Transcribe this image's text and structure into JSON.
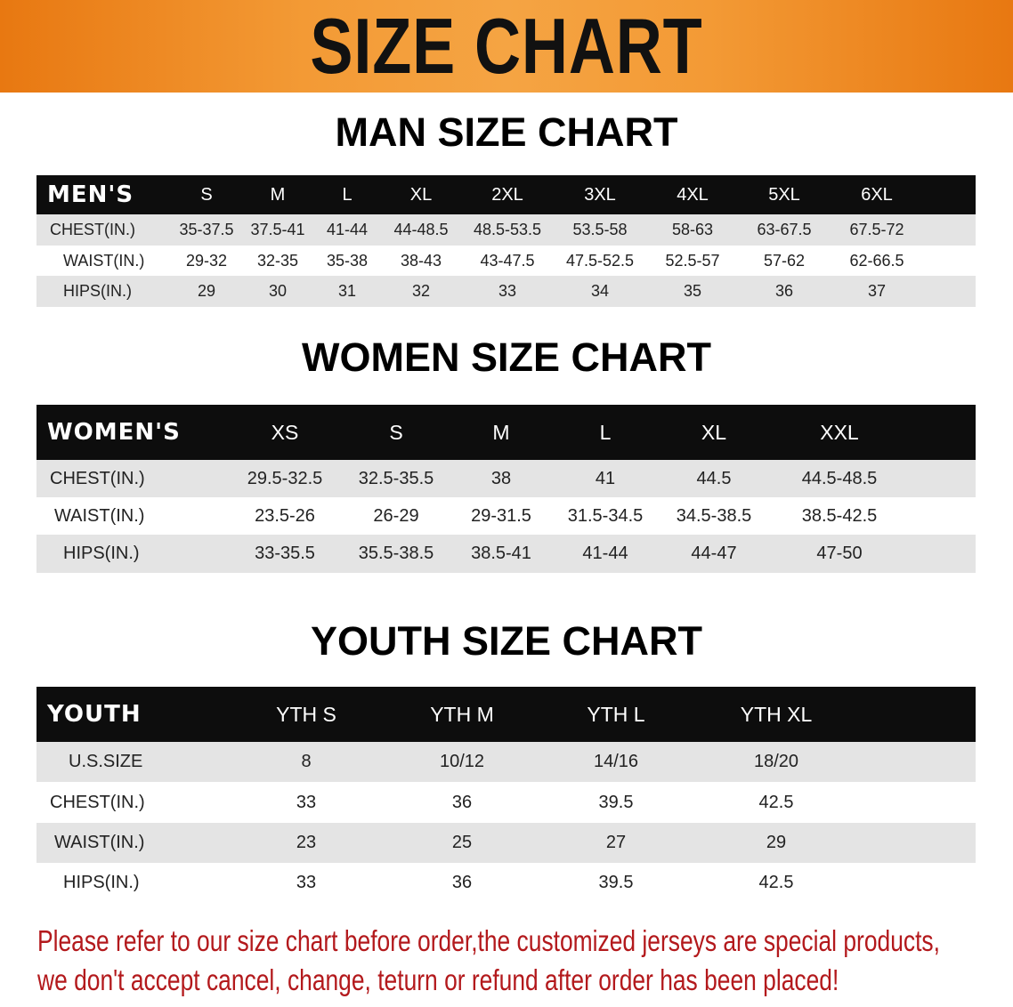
{
  "banner": {
    "title": "SIZE CHART",
    "color": "#f08a1e"
  },
  "men": {
    "title": "MAN SIZE CHART",
    "header": [
      "MEN'S",
      "S",
      "M",
      "L",
      "XL",
      "2XL",
      "3XL",
      "4XL",
      "5XL",
      "6XL"
    ],
    "rows": [
      [
        "CHEST(IN.)",
        "35-37.5",
        "37.5-41",
        "41-44",
        "44-48.5",
        "48.5-53.5",
        "53.5-58",
        "58-63",
        "63-67.5",
        "67.5-72"
      ],
      [
        "WAIST(IN.)",
        "29-32",
        "32-35",
        "35-38",
        "38-43",
        "43-47.5",
        "47.5-52.5",
        "52.5-57",
        "57-62",
        "62-66.5"
      ],
      [
        "HIPS(IN.)",
        "29",
        "30",
        "31",
        "32",
        "33",
        "34",
        "35",
        "36",
        "37"
      ]
    ]
  },
  "women": {
    "title": "WOMEN SIZE CHART",
    "header": [
      "WOMEN'S",
      "XS",
      "S",
      "M",
      "L",
      "XL",
      "XXL"
    ],
    "rows": [
      [
        "CHEST(IN.)",
        "29.5-32.5",
        "32.5-35.5",
        "38",
        "41",
        "44.5",
        "44.5-48.5"
      ],
      [
        "WAIST(IN.)",
        "23.5-26",
        "26-29",
        "29-31.5",
        "31.5-34.5",
        "34.5-38.5",
        "38.5-42.5"
      ],
      [
        "HIPS(IN.)",
        "33-35.5",
        "35.5-38.5",
        "38.5-41",
        "41-44",
        "44-47",
        "47-50"
      ]
    ]
  },
  "youth": {
    "title": "YOUTH SIZE CHART",
    "header": [
      "YOUTH",
      "YTH S",
      "YTH M",
      "YTH L",
      "YTH XL"
    ],
    "rows": [
      [
        "U.S.SIZE",
        "8",
        "10/12",
        "14/16",
        "18/20"
      ],
      [
        "CHEST(IN.)",
        "33",
        "36",
        "39.5",
        "42.5"
      ],
      [
        "WAIST(IN.)",
        "23",
        "25",
        "27",
        "29"
      ],
      [
        "HIPS(IN.)",
        "33",
        "36",
        "39.5",
        "42.5"
      ]
    ]
  },
  "note": {
    "line1": "Please refer to our size chart before order,the customized jerseys are special products,",
    "line2": "we don't accept cancel, change, teturn or refund after order has been placed!",
    "color": "#b3191c"
  }
}
